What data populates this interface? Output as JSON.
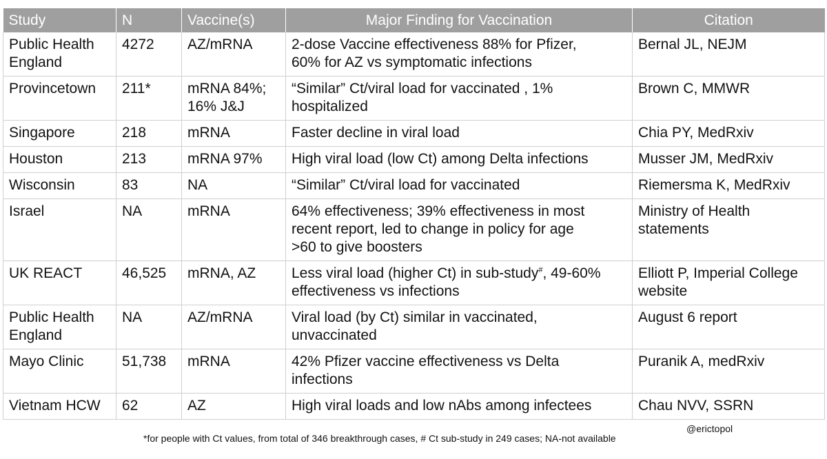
{
  "table": {
    "headers": [
      "Study",
      "N",
      "Vaccine(s)",
      "Major Finding for Vaccination",
      "Citation"
    ],
    "rows": [
      {
        "study": "Public Health\nEngland",
        "n": "4272",
        "vaccine": "AZ/mRNA",
        "finding": "2-dose Vaccine effectiveness 88% for Pfizer,\n60% for AZ vs symptomatic infections",
        "citation": "Bernal JL, NEJM"
      },
      {
        "study": "Provincetown",
        "n": "211*",
        "vaccine": "mRNA 84%;\n16% J&J",
        "finding": "“Similar” Ct/viral load for vaccinated , 1%\nhospitalized",
        "citation": "Brown C, MMWR"
      },
      {
        "study": "Singapore",
        "n": "218",
        "vaccine": "mRNA",
        "finding": "Faster decline in viral load",
        "citation": "Chia PY, MedRxiv"
      },
      {
        "study": "Houston",
        "n": "213",
        "vaccine": "mRNA 97%",
        "finding": "High viral load (low Ct) among Delta infections",
        "citation": "Musser JM, MedRxiv"
      },
      {
        "study": "Wisconsin",
        "n": "83",
        "vaccine": "NA",
        "finding": "“Similar” Ct/viral load for vaccinated",
        "citation": "Riemersma K, MedRxiv"
      },
      {
        "study": "Israel",
        "n": "NA",
        "vaccine": "mRNA",
        "finding": "64% effectiveness; 39% effectiveness in most\nrecent report, led to change in policy for age\n>60 to give boosters",
        "citation": "Ministry of Health\nstatements"
      },
      {
        "study": "UK REACT",
        "n": "46,525",
        "vaccine": "mRNA, AZ",
        "finding_pre": "Less viral load (higher Ct) in sub-study",
        "finding_sup": "#",
        "finding_post": ", 49-60%\neffectiveness vs infections",
        "citation": "Elliott P, Imperial College\nwebsite"
      },
      {
        "study": "Public Health\nEngland",
        "n": "NA",
        "vaccine": "AZ/mRNA",
        "finding": "Viral load (by Ct) similar in vaccinated,\nunvaccinated",
        "citation": "August 6 report"
      },
      {
        "study": "Mayo Clinic",
        "n": "51,738",
        "vaccine": "mRNA",
        "finding": "42% Pfizer vaccine effectiveness vs Delta\ninfections",
        "citation": "Puranik A, medRxiv"
      },
      {
        "study": "Vietnam HCW",
        "n": "62",
        "vaccine": "AZ",
        "finding": "High viral loads and low nAbs among infectees",
        "citation": "Chau NVV, SSRN"
      }
    ]
  },
  "footnote": "*for people with Ct values, from total of 346 breakthrough cases, # Ct sub-study in 249 cases; NA-not available",
  "handle": "@erictopol",
  "colors": {
    "header_bg": "#9f9f9f",
    "header_text": "#ffffff",
    "grid": "#cfcfcf"
  }
}
